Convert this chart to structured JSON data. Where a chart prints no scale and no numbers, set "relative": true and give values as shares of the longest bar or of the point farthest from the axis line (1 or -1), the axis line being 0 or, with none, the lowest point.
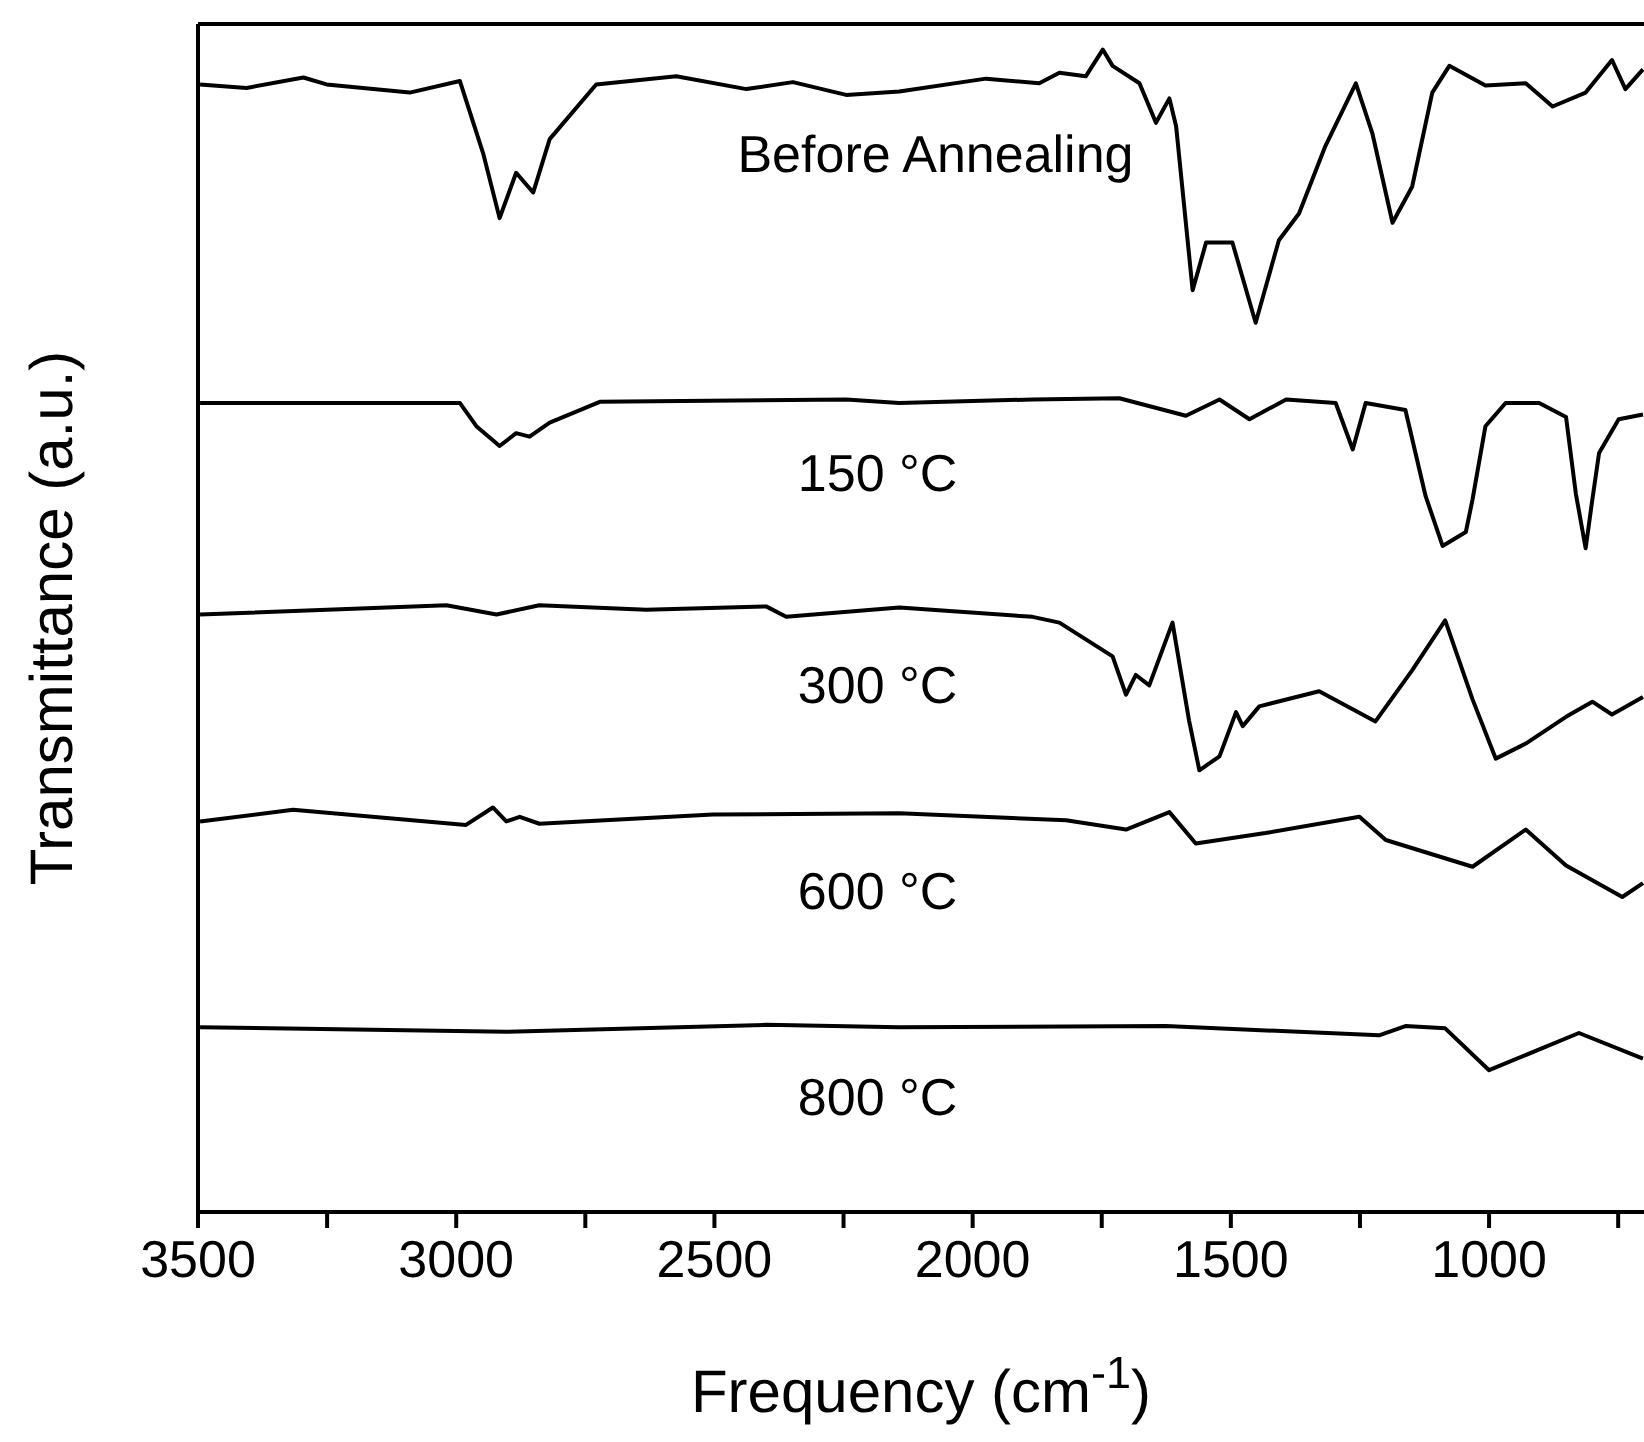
{
  "chart_data": {
    "type": "line",
    "relative": true,
    "xlabel": "Frequency (cm$^{-1}$)",
    "ylabel": "Transmittance (a.u.)",
    "xlim": [
      3500,
      700
    ],
    "xticks": [
      3500,
      {
        "value": 3250,
        "label": null
      },
      3000,
      {
        "value": 2750,
        "label": null
      },
      2500,
      {
        "value": 2250,
        "label": null
      },
      2000,
      {
        "value": 1750,
        "label": null
      },
      1500,
      {
        "value": 1250,
        "label": null
      },
      1000,
      {
        "value": 750,
        "label": null
      }
    ],
    "series": [
      {
        "name": "Before Annealing",
        "color": "#000000",
        "x": [
          3496,
          3406,
          3296,
          3251,
          3090,
          2993,
          2948,
          2916,
          2884,
          2851,
          2819,
          2729,
          2574,
          2438,
          2348,
          2245,
          2142,
          1974,
          1871,
          1832,
          1781,
          1748,
          1729,
          1677,
          1645,
          1619,
          1606,
          1574,
          1548,
          1497,
          1452,
          1407,
          1368,
          1317,
          1258,
          1226,
          1187,
          1149,
          1110,
          1077,
          1007,
          929,
          877,
          813,
          762,
          736,
          702
        ],
        "values": [
          0.97,
          0.967,
          0.976,
          0.97,
          0.963,
          0.973,
          0.911,
          0.855,
          0.894,
          0.877,
          0.923,
          0.97,
          0.977,
          0.966,
          0.972,
          0.961,
          0.964,
          0.975,
          0.971,
          0.98,
          0.977,
          1.0,
          0.986,
          0.971,
          0.937,
          0.958,
          0.934,
          0.793,
          0.834,
          0.834,
          0.765,
          0.836,
          0.859,
          0.917,
          0.971,
          0.928,
          0.851,
          0.882,
          0.963,
          0.986,
          0.969,
          0.971,
          0.951,
          0.963,
          0.991,
          0.966,
          0.983
        ]
      },
      {
        "name": "150 °C",
        "color": "#000000",
        "x": [
          3496,
          2993,
          2961,
          2916,
          2884,
          2858,
          2819,
          2722,
          2245,
          2142,
          1884,
          1716,
          1587,
          1522,
          1464,
          1393,
          1297,
          1264,
          1239,
          1162,
          1123,
          1090,
          1045,
          1032,
          1007,
          968,
          903,
          851,
          832,
          813,
          800,
          787,
          749,
          702
        ],
        "values": [
          0.696,
          0.696,
          0.676,
          0.659,
          0.67,
          0.667,
          0.679,
          0.697,
          0.699,
          0.696,
          0.699,
          0.7,
          0.685,
          0.699,
          0.682,
          0.699,
          0.696,
          0.656,
          0.696,
          0.69,
          0.616,
          0.573,
          0.585,
          0.613,
          0.676,
          0.696,
          0.696,
          0.684,
          0.618,
          0.571,
          0.613,
          0.653,
          0.682,
          0.686
        ]
      },
      {
        "name": "300 °C",
        "color": "#000000",
        "x": [
          3496,
          3019,
          2922,
          2839,
          2632,
          2400,
          2361,
          2142,
          1884,
          1832,
          1729,
          1703,
          1684,
          1658,
          1613,
          1581,
          1561,
          1522,
          1490,
          1477,
          1445,
          1329,
          1220,
          1149,
          1085,
          1032,
          987,
          929,
          851,
          800,
          762,
          702
        ],
        "values": [
          0.514,
          0.522,
          0.514,
          0.522,
          0.518,
          0.521,
          0.512,
          0.52,
          0.512,
          0.507,
          0.478,
          0.445,
          0.462,
          0.453,
          0.507,
          0.423,
          0.38,
          0.392,
          0.43,
          0.418,
          0.435,
          0.448,
          0.422,
          0.466,
          0.509,
          0.441,
          0.39,
          0.403,
          0.426,
          0.439,
          0.428,
          0.443
        ]
      },
      {
        "name": "600 °C",
        "color": "#000000",
        "x": [
          3496,
          3316,
          2981,
          2929,
          2903,
          2877,
          2839,
          2503,
          2142,
          1819,
          1703,
          1619,
          1568,
          1433,
          1251,
          1200,
          1032,
          929,
          851,
          742,
          702
        ],
        "values": [
          0.336,
          0.346,
          0.333,
          0.348,
          0.336,
          0.34,
          0.334,
          0.342,
          0.343,
          0.337,
          0.329,
          0.344,
          0.317,
          0.326,
          0.34,
          0.32,
          0.297,
          0.329,
          0.298,
          0.271,
          0.283
        ]
      },
      {
        "name": "800 °C",
        "color": "#000000",
        "x": [
          3496,
          2903,
          2400,
          2142,
          1626,
          1213,
          1162,
          1085,
          1000,
          826,
          702
        ],
        "values": [
          0.159,
          0.155,
          0.161,
          0.159,
          0.16,
          0.152,
          0.16,
          0.158,
          0.122,
          0.154,
          0.132
        ]
      }
    ]
  }
}
